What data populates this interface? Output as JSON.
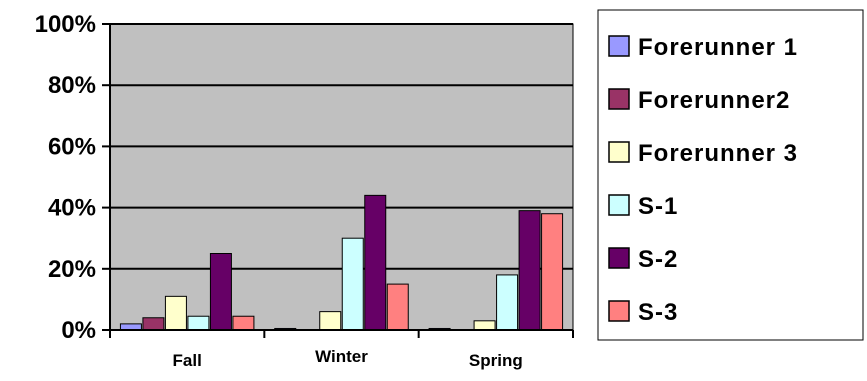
{
  "chart_data": {
    "type": "bar",
    "title": "",
    "xlabel": "",
    "ylabel": "",
    "ylim": [
      0,
      100
    ],
    "y_ticks": [
      "0%",
      "20%",
      "40%",
      "60%",
      "80%",
      "100%"
    ],
    "y_tick_values": [
      0,
      20,
      40,
      60,
      80,
      100
    ],
    "categories": [
      "Fall",
      "Winter",
      "Spring"
    ],
    "grid": true,
    "legend_position": "right",
    "plot_background": "#C0C0C0",
    "series": [
      {
        "name": "Forerunner 1",
        "color": "#9999FF",
        "values": [
          2,
          0.5,
          0.5
        ]
      },
      {
        "name": "Forerunner2",
        "color": "#993366",
        "values": [
          4,
          0,
          0
        ]
      },
      {
        "name": "Forerunner 3",
        "color": "#FFFFCC",
        "values": [
          11,
          6,
          3
        ]
      },
      {
        "name": "S-1",
        "color": "#CCFFFF",
        "values": [
          4.5,
          30,
          18
        ]
      },
      {
        "name": "S-2",
        "color": "#660066",
        "values": [
          25,
          44,
          39
        ]
      },
      {
        "name": "S-3",
        "color": "#FF8080",
        "values": [
          4.5,
          15,
          38
        ]
      }
    ]
  }
}
